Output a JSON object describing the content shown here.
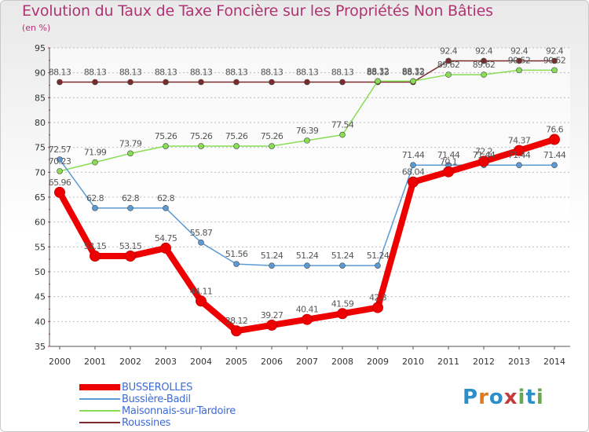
{
  "header": {
    "title": "Evolution du Taux de Taxe Foncière sur les Propriétés Non Bâties",
    "unit": "(en %)"
  },
  "logo": {
    "text": "Proxiti",
    "colors": [
      "#2d8fc7",
      "#e07a1f",
      "#2d8fc7",
      "#c43a3a",
      "#6aa84f",
      "#2d8fc7",
      "#6aa84f"
    ]
  },
  "chart_data": {
    "type": "line",
    "title": "Evolution du Taux de Taxe Foncière sur les Propriétés Non Bâties",
    "ylabel": "(en %)",
    "xlabel": "",
    "ylim": [
      35,
      95
    ],
    "yticks": [
      35,
      40,
      45,
      50,
      55,
      60,
      65,
      70,
      75,
      80,
      85,
      90,
      95
    ],
    "x": [
      "2000",
      "2001",
      "2002",
      "2003",
      "2004",
      "2005",
      "2006",
      "2007",
      "2008",
      "2009",
      "2010",
      "2011",
      "2012",
      "2013",
      "2014"
    ],
    "grid": "horizontal dashed",
    "legend_position": "bottom-left",
    "series": [
      {
        "name": "Roussines",
        "color": "#7a2b2b",
        "width": 1.5,
        "marker": 3.5,
        "values": [
          88.13,
          88.13,
          88.13,
          88.13,
          88.13,
          88.13,
          88.13,
          88.13,
          88.13,
          88.13,
          88.13,
          92.4,
          92.4,
          92.4,
          92.4
        ],
        "labels": [
          "88.13",
          "88.13",
          "88.13",
          "88.13",
          "88.13",
          "88.13",
          "88.13",
          "88.13",
          "88.13",
          "88.13",
          "88.13",
          "92.4",
          "92.4",
          "92.4",
          "92.4"
        ]
      },
      {
        "name": "Maisonnais-sur-Tardoire",
        "color": "#88dd55",
        "width": 1.5,
        "marker": 3.5,
        "values": [
          70.23,
          71.99,
          73.79,
          75.26,
          75.26,
          75.26,
          75.26,
          76.39,
          77.54,
          88.32,
          88.32,
          89.62,
          89.62,
          90.52,
          90.52
        ],
        "labels": [
          "70.23",
          "71.99",
          "73.79",
          "75.26",
          "75.26",
          "75.26",
          "75.26",
          "76.39",
          "77.54",
          "88.32",
          "88.32",
          "89.62",
          "89.62",
          "90.52",
          "90.52"
        ]
      },
      {
        "name": "Bussière-Badil",
        "color": "#5b9bd5",
        "width": 1.5,
        "marker": 3.5,
        "values": [
          72.57,
          62.8,
          62.8,
          62.8,
          55.87,
          51.56,
          51.24,
          51.24,
          51.24,
          51.24,
          71.44,
          71.44,
          71.44,
          71.44,
          71.44
        ],
        "labels": [
          "72.57",
          "62.8",
          "62.8",
          "62.8",
          "55.87",
          "51.56",
          "51.24",
          "51.24",
          "51.24",
          "51.24",
          "71.44",
          "71.44",
          "71.44",
          "71.44",
          "71.44"
        ]
      },
      {
        "name": "BUSSEROLLES",
        "color": "#ee0000",
        "width": 8,
        "marker": 6.5,
        "values": [
          65.96,
          53.15,
          53.15,
          54.75,
          44.11,
          38.12,
          39.27,
          40.41,
          41.59,
          42.8,
          68.04,
          70.1,
          72.2,
          74.37,
          76.6
        ],
        "labels": [
          "65.96",
          "53.15",
          "53.15",
          "54.75",
          "44.11",
          "38.12",
          "39.27",
          "40.41",
          "41.59",
          "42.8",
          "68.04",
          "70.1",
          "72.2",
          "74.37",
          "76.6"
        ]
      }
    ]
  },
  "legend": {
    "items": [
      {
        "label": "BUSSEROLLES",
        "color": "#ee0000"
      },
      {
        "label": "Bussière-Badil",
        "color": "#5b9bd5"
      },
      {
        "label": "Maisonnais-sur-Tardoire",
        "color": "#88dd55"
      },
      {
        "label": "Roussines",
        "color": "#7a2b2b"
      }
    ]
  }
}
